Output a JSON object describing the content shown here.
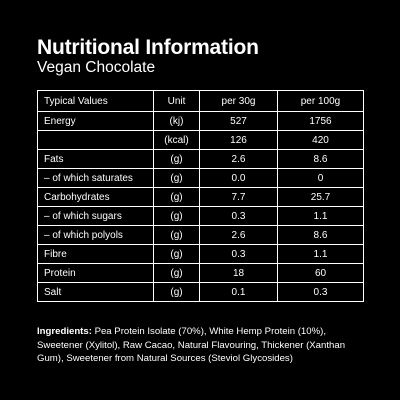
{
  "header": {
    "title": "Nutritional Information",
    "subtitle": "Vegan Chocolate"
  },
  "table": {
    "columns": [
      "Typical Values",
      "Unit",
      "per 30g",
      "per 100g"
    ],
    "rows": [
      {
        "name": "Energy",
        "unit": "(kj)",
        "per30": "527",
        "per100": "1756"
      },
      {
        "name": "",
        "unit": "(kcal)",
        "per30": "126",
        "per100": "420"
      },
      {
        "name": "Fats",
        "unit": "(g)",
        "per30": "2.6",
        "per100": "8.6"
      },
      {
        "name": "– of which saturates",
        "unit": "(g)",
        "per30": "0.0",
        "per100": "0"
      },
      {
        "name": "Carbohydrates",
        "unit": "(g)",
        "per30": "7.7",
        "per100": "25.7"
      },
      {
        "name": "– of which sugars",
        "unit": "(g)",
        "per30": "0.3",
        "per100": "1.1"
      },
      {
        "name": "– of which polyols",
        "unit": "(g)",
        "per30": "2.6",
        "per100": "8.6"
      },
      {
        "name": "Fibre",
        "unit": "(g)",
        "per30": "0.3",
        "per100": "1.1"
      },
      {
        "name": "Protein",
        "unit": "(g)",
        "per30": "18",
        "per100": "60"
      },
      {
        "name": "Salt",
        "unit": "(g)",
        "per30": "0.1",
        "per100": "0.3"
      }
    ]
  },
  "ingredients": {
    "label": "Ingredients:",
    "text": " Pea Protein Isolate (70%), White Hemp Protein (10%), Sweetener (Xylitol), Raw Cacao, Natural Flavouring, Thickener (Xanthan Gum), Sweetener from Natural Sources (Steviol Glycosides)"
  },
  "colors": {
    "background": "#000000",
    "text": "#ffffff"
  }
}
